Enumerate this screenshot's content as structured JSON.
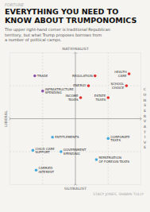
{
  "chart_data": {
    "type": "scatter",
    "title": "EVERYTHING YOU NEED TO\nKNOW ABOUT TRUMPONOMICS",
    "subtitle": "The upper right-hand corner is traditional Republican\nterritory, but  what Trump proposes borrows from\na number of political camps.",
    "annotations": [
      "FORTUNE",
      "STACY JONES, SHAWN TULLY"
    ],
    "axis_labels": {
      "top": "NATIONALIST",
      "bottom": "GLOBALIST",
      "left": "LIBERAL",
      "right": "CONSERVATIVE"
    },
    "xlim": [
      -1.0,
      1.0
    ],
    "ylim": [
      -1.0,
      1.0
    ],
    "xticks": [
      -0.5,
      0.5
    ],
    "yticks": [
      -0.5,
      0.5
    ],
    "grid": true,
    "tick_labels": false,
    "series": [
      {
        "color": "#e03030",
        "x": [
          0.3,
          0.82,
          0.2,
          0.78,
          0.08,
          0.5
        ],
        "values": [
          0.65,
          0.68,
          0.5,
          0.5,
          0.32,
          0.32
        ],
        "labels": [
          "REGULATION",
          "HEALTH\nCARE",
          "ENERGY",
          "SCHOOL\nCHOICE",
          "INCOME\nTAXES",
          "ESTATE\nTAXES"
        ]
      },
      {
        "color": "#8855aa",
        "x": [
          -0.62,
          -0.5
        ],
        "values": [
          0.65,
          0.42
        ],
        "labels": [
          "TRADE",
          "INFRASTRUCTURE\nSPENDING"
        ]
      },
      {
        "color": "#44aadd",
        "x": [
          -0.35,
          0.5,
          -0.65,
          -0.22,
          0.32,
          -0.6
        ],
        "values": [
          -0.28,
          -0.3,
          -0.48,
          -0.5,
          -0.62,
          -0.78
        ],
        "labels": [
          "ENTITLEMENTS",
          "CORPORATE\nTAXES",
          "CHILD CARE\nSUPPORT",
          "GOVERNMENT\nSPENDING",
          "REPATRIATION\nOF FOREIGN TAXES",
          "CARRIED\nINTEREST"
        ]
      }
    ]
  }
}
